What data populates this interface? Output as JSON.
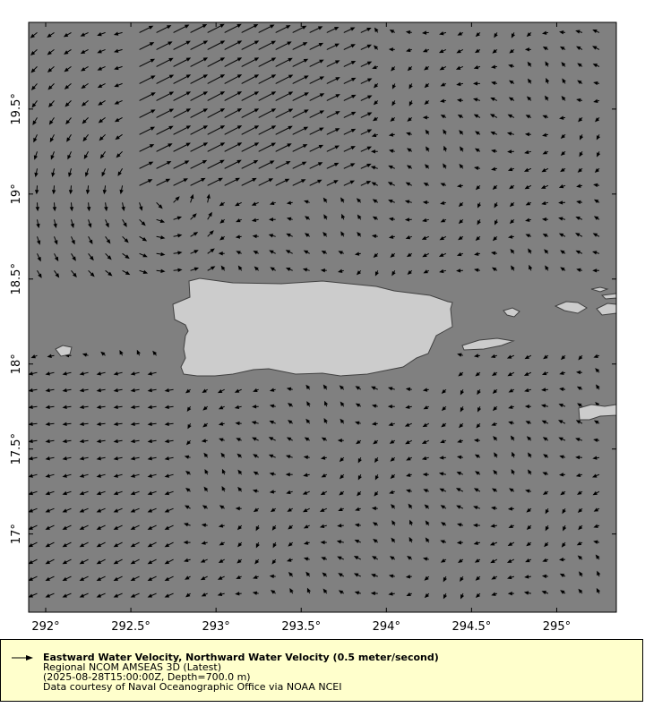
{
  "map": {
    "lon_range": [
      291.9,
      295.35
    ],
    "lat_range": [
      16.54,
      20.01
    ],
    "x_ticks": [
      {
        "value": 292,
        "label": "292°"
      },
      {
        "value": 292.5,
        "label": "292.5°"
      },
      {
        "value": 293,
        "label": "293°"
      },
      {
        "value": 293.5,
        "label": "293.5°"
      },
      {
        "value": 294,
        "label": "294°"
      },
      {
        "value": 294.5,
        "label": "294.5°"
      },
      {
        "value": 295,
        "label": "295°"
      }
    ],
    "y_ticks": [
      {
        "value": 19.5,
        "label": "19.5°"
      },
      {
        "value": 19,
        "label": "19°"
      },
      {
        "value": 18.5,
        "label": "18.5°"
      },
      {
        "value": 18,
        "label": "18°"
      },
      {
        "value": 17.5,
        "label": "17.5°"
      },
      {
        "value": 17,
        "label": "17°"
      }
    ],
    "colors": {
      "ocean": "#808080",
      "land": "#cccccc",
      "coast": "#404040",
      "vectors": "#000000",
      "legend_bg": "#ffffcc"
    }
  },
  "legend": {
    "icon": "arrow-right-icon",
    "title": "Eastward Water Velocity, Northward Water Velocity (0.5 meter/second)",
    "line1": "Regional NCOM AMSEAS 3D (Latest)",
    "line2": "(2025-08-28T15:00:00Z, Depth=700.0 m)",
    "line3": "Data courtesy of Naval Oceanographic Office via NOAA NCEI"
  }
}
